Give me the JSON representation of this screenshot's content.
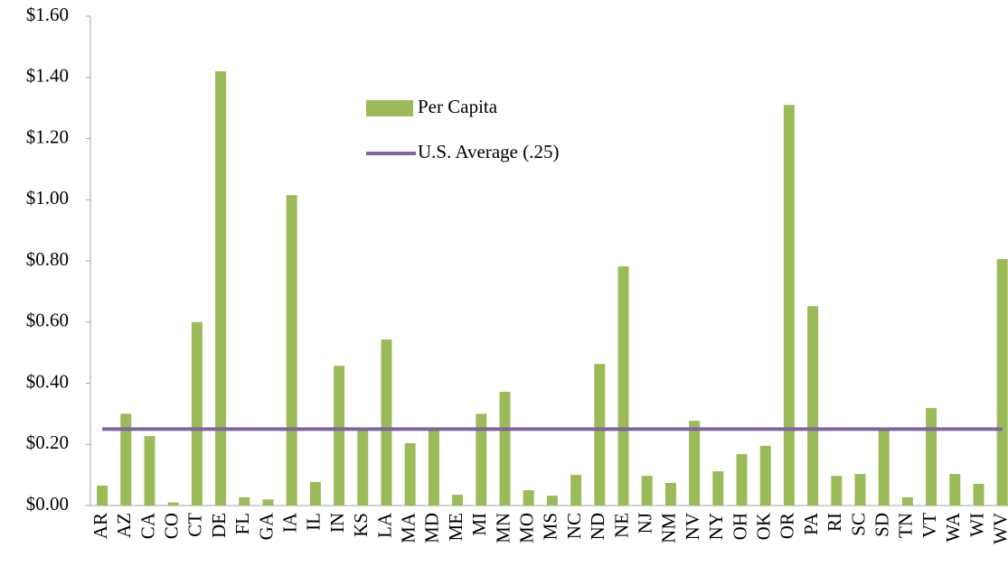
{
  "chart_data": {
    "type": "bar",
    "categories": [
      "AR",
      "AZ",
      "CA",
      "CO",
      "CT",
      "DE",
      "FL",
      "GA",
      "IA",
      "IL",
      "IN",
      "KS",
      "LA",
      "MA",
      "MD",
      "ME",
      "MI",
      "MN",
      "MO",
      "MS",
      "NC",
      "ND",
      "NE",
      "NJ",
      "NM",
      "NV",
      "NY",
      "OH",
      "OK",
      "OR",
      "PA",
      "RI",
      "SC",
      "SD",
      "TN",
      "VT",
      "WA",
      "WI",
      "WV"
    ],
    "series": [
      {
        "name": "Per Capita",
        "type": "bar",
        "color": "#9bbb59",
        "values": [
          0.065,
          0.3,
          0.227,
          0.01,
          0.6,
          1.42,
          0.027,
          0.02,
          1.015,
          0.077,
          0.457,
          0.245,
          0.543,
          0.204,
          0.245,
          0.035,
          0.3,
          0.372,
          0.05,
          0.032,
          0.1,
          0.463,
          0.782,
          0.097,
          0.074,
          0.277,
          0.112,
          0.168,
          0.195,
          1.31,
          0.652,
          0.097,
          0.103,
          0.248,
          0.027,
          0.319,
          0.103,
          0.071,
          0.806
        ]
      },
      {
        "name": "U.S. Average (.25)",
        "type": "line",
        "color": "#8064a2",
        "values": [
          0.25,
          0.25,
          0.25,
          0.25,
          0.25,
          0.25,
          0.25,
          0.25,
          0.25,
          0.25,
          0.25,
          0.25,
          0.25,
          0.25,
          0.25,
          0.25,
          0.25,
          0.25,
          0.25,
          0.25,
          0.25,
          0.25,
          0.25,
          0.25,
          0.25,
          0.25,
          0.25,
          0.25,
          0.25,
          0.25,
          0.25,
          0.25,
          0.25,
          0.25,
          0.25,
          0.25,
          0.25,
          0.25,
          0.25
        ]
      }
    ],
    "ylim": [
      0,
      1.6
    ],
    "yticks": [
      {
        "value": 0,
        "label": "$0.00"
      },
      {
        "value": 0.2,
        "label": "$0.20"
      },
      {
        "value": 0.4,
        "label": "$0.40"
      },
      {
        "value": 0.6,
        "label": "$0.60"
      },
      {
        "value": 0.8,
        "label": "$0.80"
      },
      {
        "value": 1.0,
        "label": "$1.00"
      },
      {
        "value": 1.2,
        "label": "$1.20"
      },
      {
        "value": 1.4,
        "label": "$1.40"
      },
      {
        "value": 1.6,
        "label": "$1.60"
      }
    ],
    "grid": false,
    "legend": "top-center"
  }
}
